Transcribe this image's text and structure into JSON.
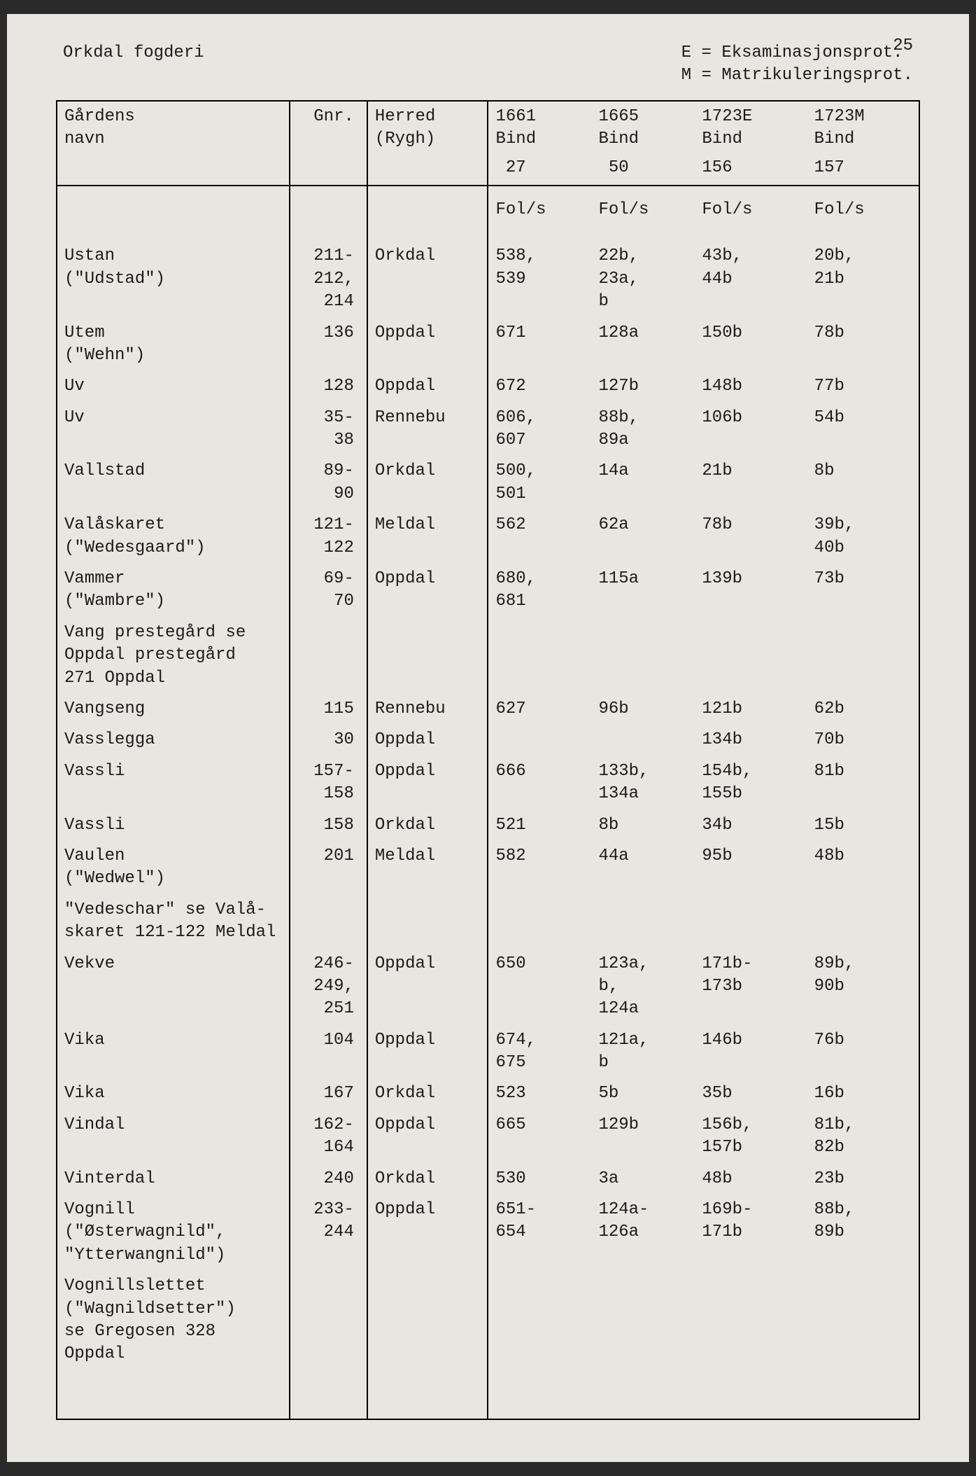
{
  "page_number": "25",
  "header": {
    "region": "Orkdal fogderi",
    "legend": [
      "E = Eksaminasjonsprot.",
      "M = Matrikuleringsprot."
    ]
  },
  "columns": {
    "name_label": "Gårdens\nnavn",
    "gnr_label": "Gnr.",
    "herred_label": "Herred\n(Rygh)",
    "years": [
      {
        "year": "1661",
        "bind_label": "Bind",
        "bind_num": "27",
        "fol": "Fol/s"
      },
      {
        "year": "1665",
        "bind_label": "Bind",
        "bind_num": "50",
        "fol": "Fol/s"
      },
      {
        "year": "1723E",
        "bind_label": "Bind",
        "bind_num": "156",
        "fol": "Fol/s"
      },
      {
        "year": "1723M",
        "bind_label": "Bind",
        "bind_num": "157",
        "fol": "Fol/s"
      }
    ]
  },
  "rows": [
    {
      "name": "Ustan\n(\"Udstad\")",
      "gnr": "211-\n212,\n214",
      "herred": "Orkdal",
      "y1": "538,\n539",
      "y2": "22b,\n23a,\nb",
      "y3": "43b,\n44b",
      "y4": "20b,\n21b"
    },
    {
      "name": "Utem\n(\"Wehn\")",
      "gnr": "136",
      "herred": "Oppdal",
      "y1": "671",
      "y2": "128a",
      "y3": "150b",
      "y4": "78b"
    },
    {
      "name": "Uv",
      "gnr": "128",
      "herred": "Oppdal",
      "y1": "672",
      "y2": "127b",
      "y3": "148b",
      "y4": "77b"
    },
    {
      "name": "Uv",
      "gnr": "35-\n38",
      "herred": "Rennebu",
      "y1": "606,\n607",
      "y2": "88b,\n89a",
      "y3": "106b",
      "y4": "54b"
    },
    {
      "name": "Vallstad",
      "gnr": "89-\n90",
      "herred": "Orkdal",
      "y1": "500,\n501",
      "y2": "14a",
      "y3": "21b",
      "y4": "8b"
    },
    {
      "name": "Valåskaret\n(\"Wedesgaard\")",
      "gnr": "121-\n122",
      "herred": "Meldal",
      "y1": "562",
      "y2": "62a",
      "y3": "78b",
      "y4": "39b,\n40b"
    },
    {
      "name": "Vammer\n(\"Wambre\")",
      "gnr": "69-\n70",
      "herred": "Oppdal",
      "y1": "680,\n681",
      "y2": "115a",
      "y3": "139b",
      "y4": "73b"
    },
    {
      "name": "Vang prestegård se\nOppdal prestegård\n271 Oppdal",
      "gnr": "",
      "herred": "",
      "y1": "",
      "y2": "",
      "y3": "",
      "y4": ""
    },
    {
      "name": "Vangseng",
      "gnr": "115",
      "herred": "Rennebu",
      "y1": "627",
      "y2": "96b",
      "y3": "121b",
      "y4": "62b"
    },
    {
      "name": "Vasslegga",
      "gnr": "30",
      "herred": "Oppdal",
      "y1": "",
      "y2": "",
      "y3": "134b",
      "y4": "70b"
    },
    {
      "name": "Vassli",
      "gnr": "157-\n158",
      "herred": "Oppdal",
      "y1": "666",
      "y2": "133b,\n134a",
      "y3": "154b,\n155b",
      "y4": "81b"
    },
    {
      "name": "Vassli",
      "gnr": "158",
      "herred": "Orkdal",
      "y1": "521",
      "y2": "8b",
      "y3": "34b",
      "y4": "15b"
    },
    {
      "name": "Vaulen\n(\"Wedwel\")",
      "gnr": "201",
      "herred": "Meldal",
      "y1": "582",
      "y2": "44a",
      "y3": "95b",
      "y4": "48b"
    },
    {
      "name": "\"Vedeschar\" se Valå-\nskaret 121-122 Meldal",
      "gnr": "",
      "herred": "",
      "y1": "",
      "y2": "",
      "y3": "",
      "y4": ""
    },
    {
      "name": "Vekve",
      "gnr": "246-\n249,\n251",
      "herred": "Oppdal",
      "y1": "650",
      "y2": "123a,\nb,\n124a",
      "y3": "171b-\n173b",
      "y4": "89b,\n90b"
    },
    {
      "name": "Vika",
      "gnr": "104",
      "herred": "Oppdal",
      "y1": "674,\n675",
      "y2": "121a,\nb",
      "y3": "146b",
      "y4": "76b"
    },
    {
      "name": "Vika",
      "gnr": "167",
      "herred": "Orkdal",
      "y1": "523",
      "y2": "5b",
      "y3": "35b",
      "y4": "16b"
    },
    {
      "name": "Vindal",
      "gnr": "162-\n164",
      "herred": "Oppdal",
      "y1": "665",
      "y2": "129b",
      "y3": "156b,\n157b",
      "y4": "81b,\n82b"
    },
    {
      "name": "Vinterdal",
      "gnr": "240",
      "herred": "Orkdal",
      "y1": "530",
      "y2": "3a",
      "y3": "48b",
      "y4": "23b"
    },
    {
      "name": "Vognill\n(\"Østerwagnild\",\n\"Ytterwangnild\")",
      "gnr": "233-\n244",
      "herred": "Oppdal",
      "y1": "651-\n654",
      "y2": "124a-\n126a",
      "y3": "169b-\n171b",
      "y4": "88b,\n89b"
    },
    {
      "name": "Vognillslettet\n(\"Wagnildsetter\")\nse Gregosen 328\nOppdal",
      "gnr": "",
      "herred": "",
      "y1": "",
      "y2": "",
      "y3": "",
      "y4": ""
    }
  ],
  "colors": {
    "paper": "#e8e6e0",
    "ink": "#1a1a1a",
    "border": "#000000"
  },
  "typography": {
    "font_family": "Courier New",
    "font_size_pt": 18
  }
}
